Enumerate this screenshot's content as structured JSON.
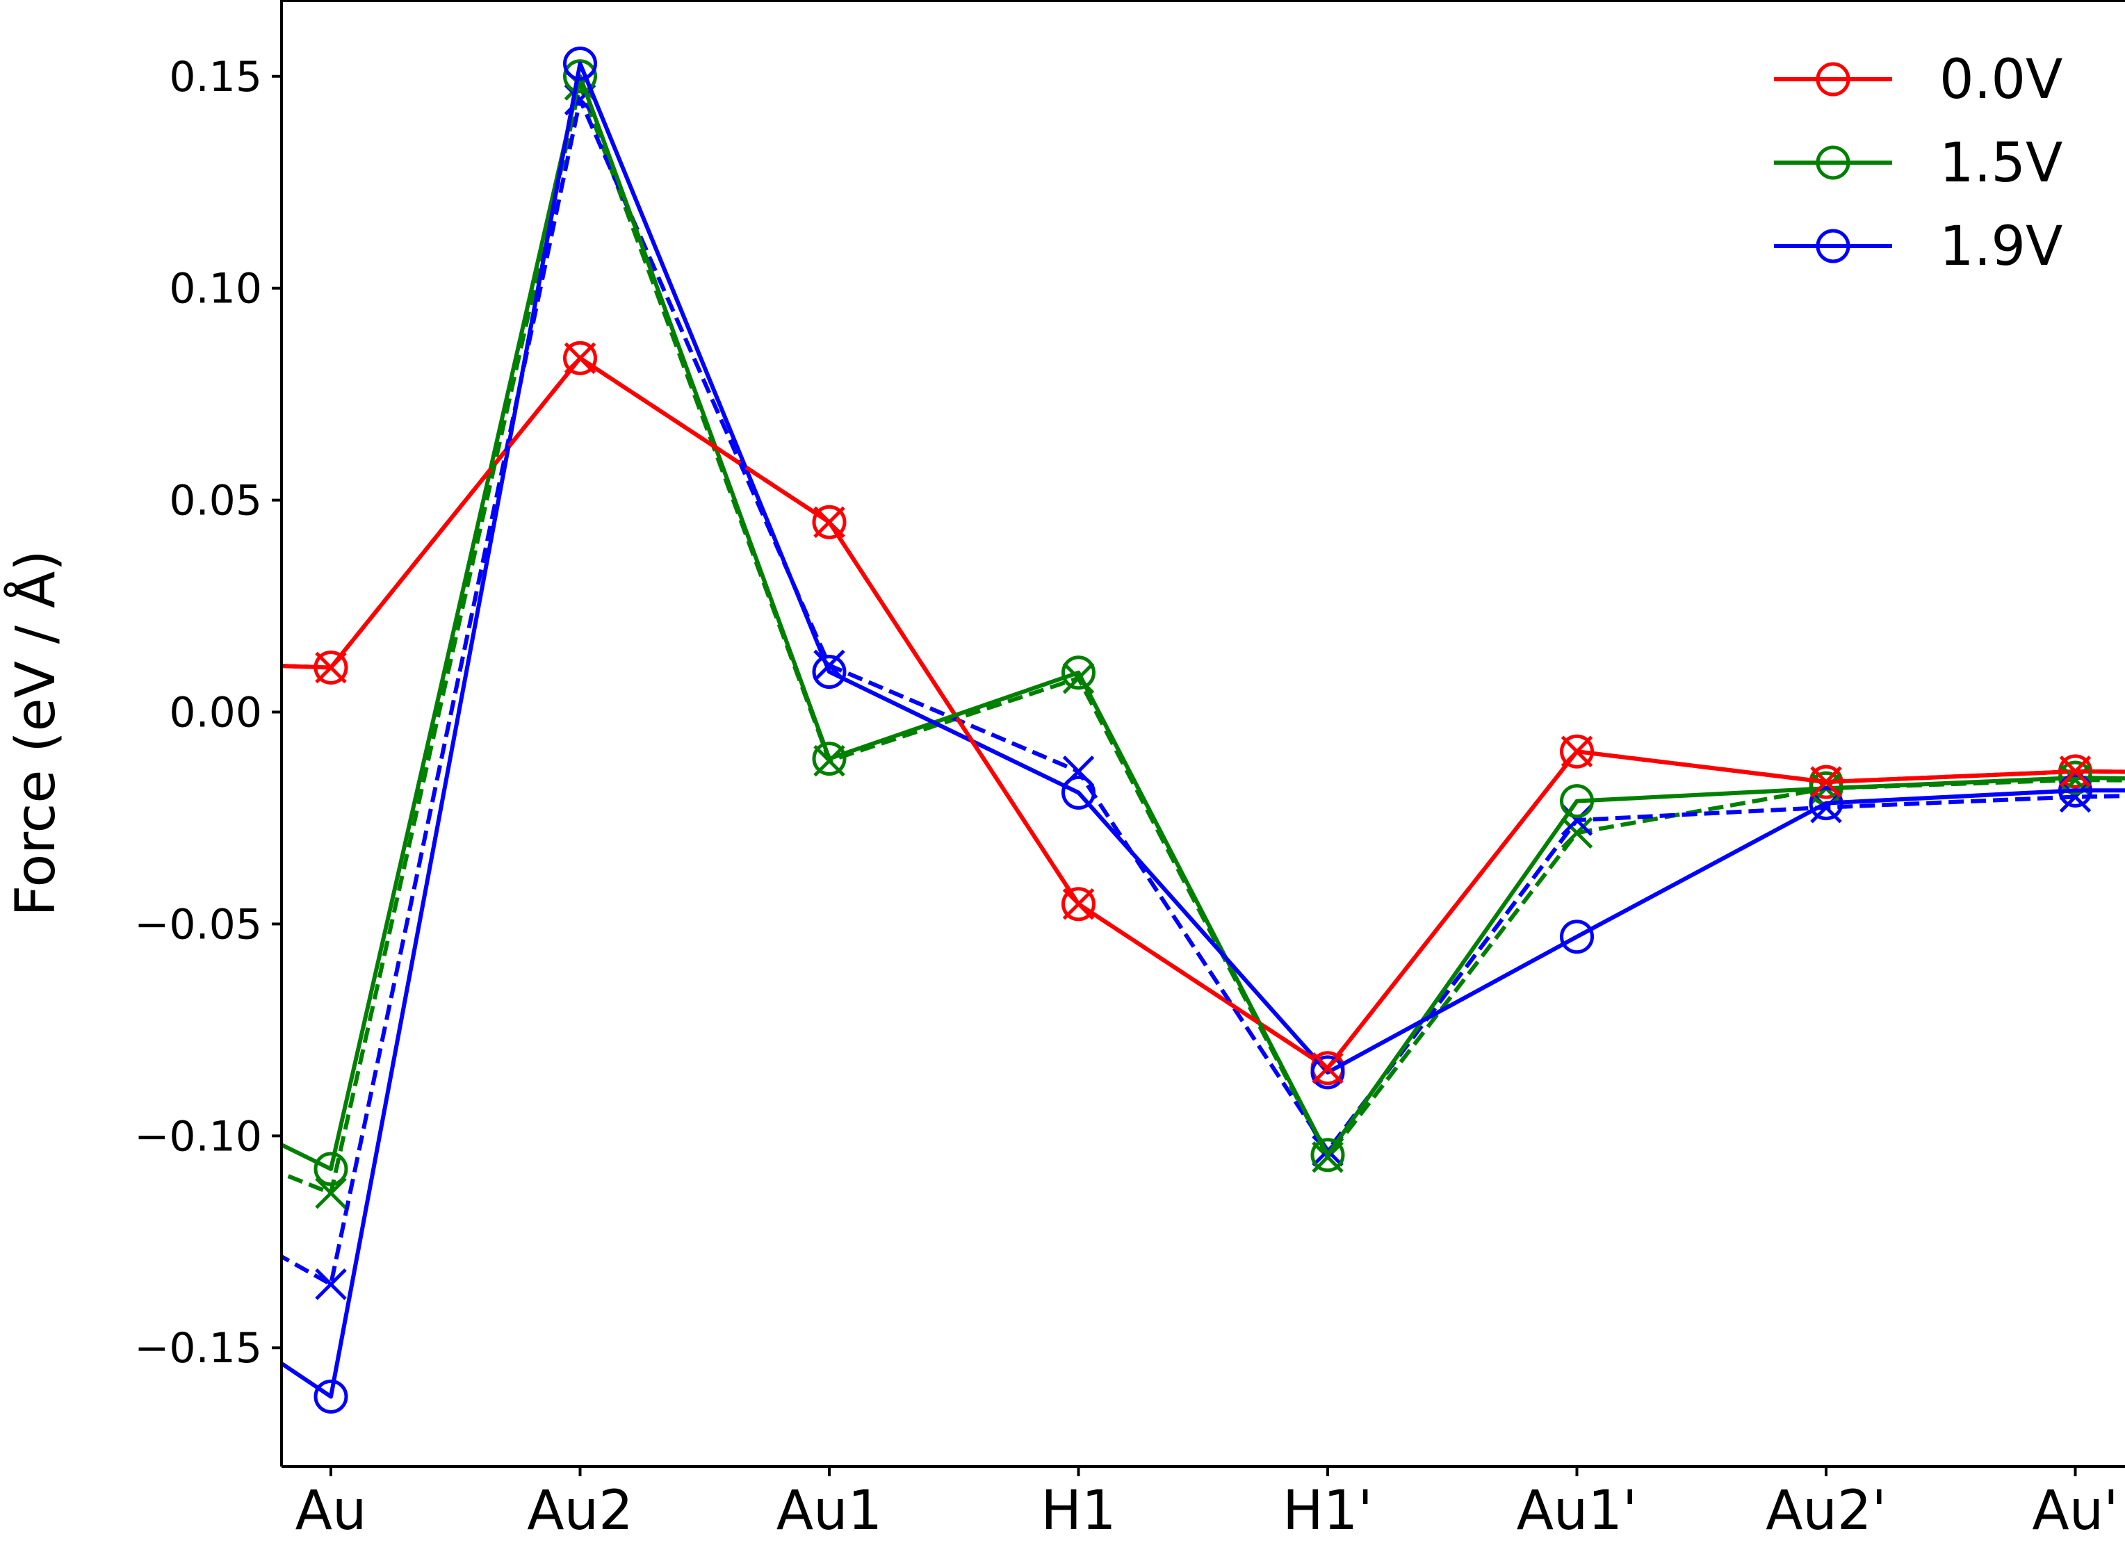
{
  "chart_data": {
    "type": "line",
    "xlabel": "",
    "ylabel": "Force (eV / Å)",
    "categories": [
      "Au",
      "Au2",
      "Au1",
      "H1",
      "H1'",
      "Au1'",
      "Au2'",
      "Au'"
    ],
    "ylim": [
      -0.178,
      0.168
    ],
    "yticks": [
      0.15,
      0.1,
      0.05,
      0.0,
      -0.05,
      -0.1,
      -0.15
    ],
    "ytick_labels": [
      "0.15",
      "0.10",
      "0.05",
      "0.00",
      "−0.05",
      "−0.10",
      "−0.15"
    ],
    "legend_position": "top-right",
    "grid": false,
    "series": [
      {
        "name": "0.0V",
        "color": "#ff0000",
        "marker": "circle",
        "linestyle": "solid",
        "lead_in": 0.0125,
        "values": [
          0.0105,
          0.0835,
          0.0448,
          -0.0453,
          -0.084,
          -0.0093,
          -0.0165,
          -0.014
        ],
        "tail": -0.0145
      },
      {
        "name": "1.5V",
        "color": "#008000",
        "marker": "circle",
        "linestyle": "solid",
        "lead_in": -0.079,
        "values": [
          -0.1078,
          0.15,
          -0.011,
          0.0093,
          -0.1045,
          -0.021,
          -0.018,
          -0.0155
        ],
        "tail": -0.0162
      },
      {
        "name": "1.9V",
        "color": "#0000ff",
        "marker": "circle",
        "linestyle": "solid",
        "lead_in": -0.122,
        "values": [
          -0.1615,
          0.153,
          0.0095,
          -0.019,
          -0.085,
          -0.053,
          -0.0215,
          -0.0185
        ],
        "tail": -0.0185
      },
      {
        "color": "#008000",
        "marker": "x",
        "linestyle": "dashed",
        "lead_in": -0.09,
        "values": [
          -0.1135,
          0.148,
          -0.0115,
          0.008,
          -0.105,
          -0.0285,
          -0.018,
          -0.016
        ],
        "tail": -0.0165
      },
      {
        "color": "#0000ff",
        "marker": "x",
        "linestyle": "dashed",
        "lead_in": -0.102,
        "values": [
          -0.135,
          0.1445,
          0.011,
          -0.014,
          -0.1035,
          -0.0255,
          -0.0225,
          -0.02
        ],
        "tail": -0.019
      },
      {
        "color": "#ff0000",
        "marker": "x",
        "linestyle": "dashed",
        "lead_in": 0.0125,
        "values": [
          0.0105,
          0.0835,
          0.0448,
          -0.0453,
          -0.084,
          -0.0093,
          -0.0165,
          -0.014
        ],
        "tail": -0.0145
      }
    ]
  }
}
